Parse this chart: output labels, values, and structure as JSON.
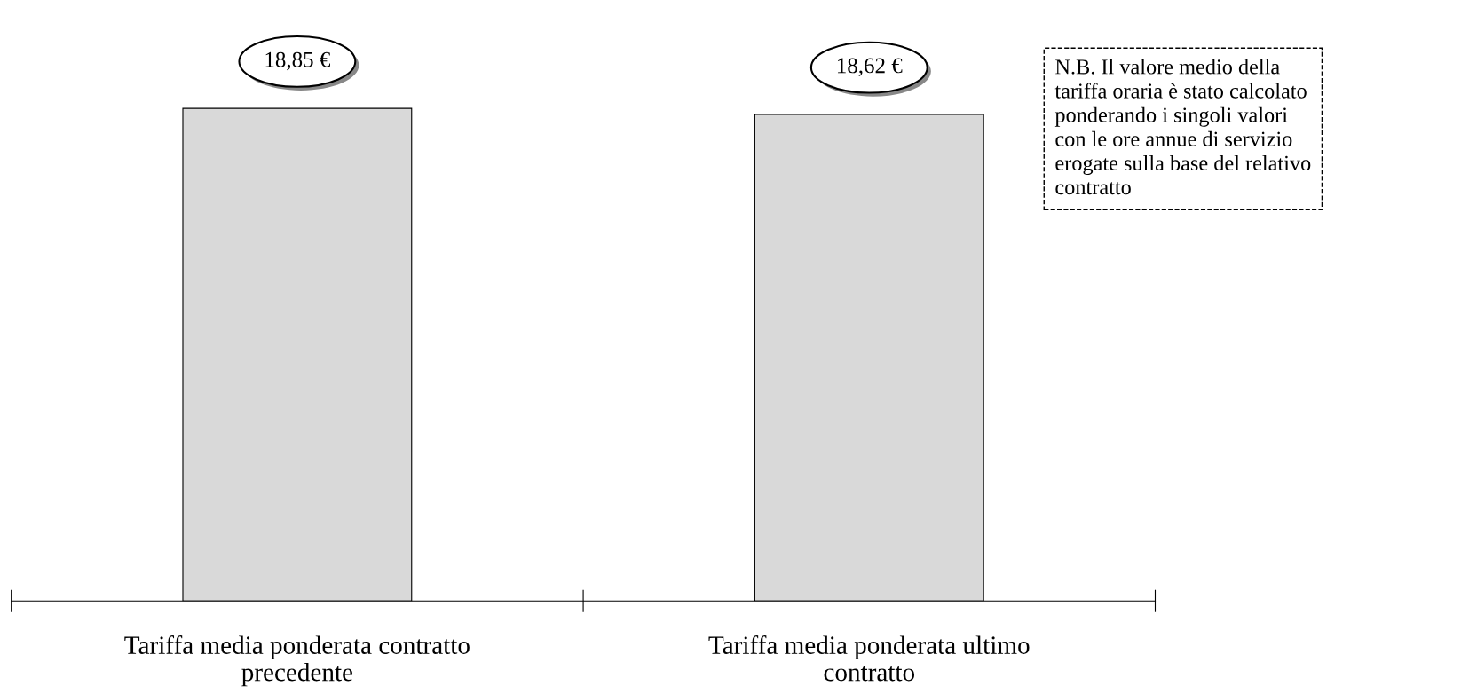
{
  "chart_data": {
    "type": "bar",
    "categories": [
      "Tariffa media ponderata contratto\nprecedente",
      "Tariffa media ponderata ultimo\ncontratto"
    ],
    "values": [
      18.85,
      18.62
    ],
    "value_labels": [
      "18,85 €",
      "18,62 €"
    ],
    "color": "#d9d9d9",
    "annotations": [
      "N.B. Il valore medio della\ntariffa oraria è stato calcolato\nponderando i singoli valori\ncon le ore annue di servizio\nerogate sulla base del relativo\ncontratto"
    ],
    "grid": false,
    "legend": false
  }
}
